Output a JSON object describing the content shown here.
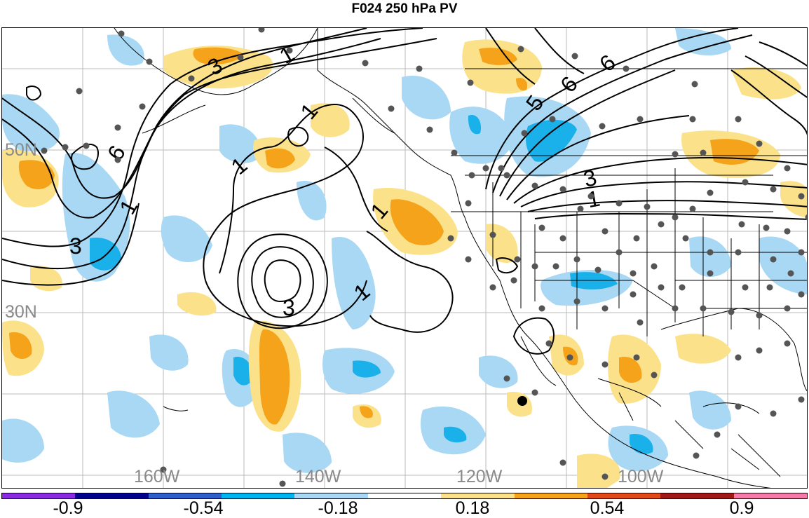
{
  "title": "F024 250 hPa PV",
  "map": {
    "lat_labels": [
      "50N",
      "30N"
    ],
    "lon_labels": [
      "160W",
      "140W",
      "120W",
      "100W"
    ],
    "contour_labels": [
      "3",
      "1",
      "6",
      "1",
      "3",
      "1",
      "1",
      "3",
      "1",
      "1",
      "5",
      "6",
      "6",
      "3",
      "1"
    ]
  },
  "colors": {
    "positive_light": "#fbe28a",
    "positive_mid": "#f4a31a",
    "negative_light": "#a8d8f4",
    "negative_mid": "#1ab0ea",
    "contour": "#000000",
    "station": "#555555",
    "grid": "#bbbbbb"
  },
  "colorbar": {
    "labels": [
      "-0.9",
      "-0.54",
      "-0.18",
      "0.18",
      "0.54",
      "0.9"
    ],
    "swatches": [
      "#8a2be2",
      "#00008b",
      "#2f5fc8",
      "#00b4ee",
      "#a8d8f4",
      "#ffffff",
      "#fbe28a",
      "#f4a31a",
      "#e04a1a",
      "#a01818",
      "#f47aaa"
    ]
  }
}
